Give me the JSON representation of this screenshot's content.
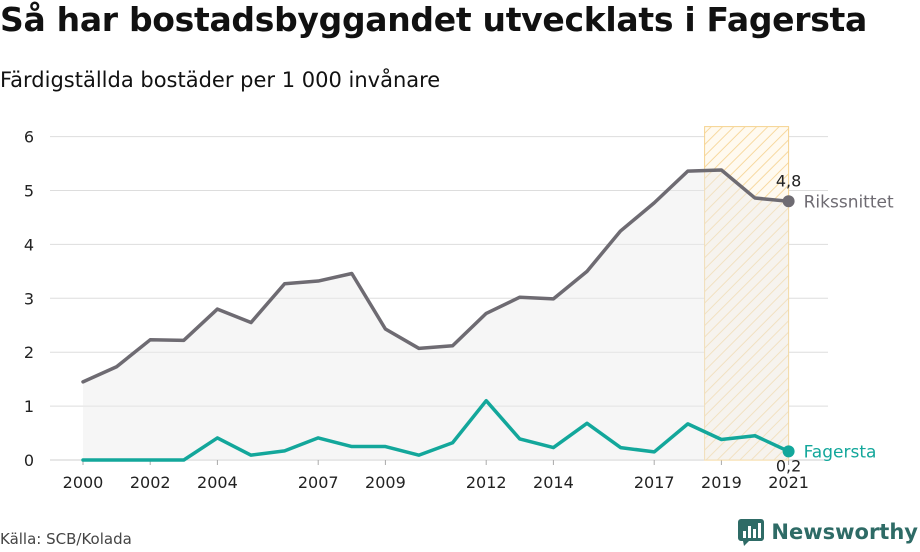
{
  "header": {
    "title": "Så har bostadsbyggandet utvecklats i Fagersta",
    "subtitle": "Färdigställda bostäder per 1 000 invånare"
  },
  "footer": {
    "source": "Källa: SCB/Kolada",
    "brand": "Newsworthy"
  },
  "chart_data": {
    "type": "line",
    "title": "Så har bostadsbyggandet utvecklats i Fagersta",
    "subtitle": "Färdigställda bostäder per 1 000 invånare",
    "x": [
      2000,
      2001,
      2002,
      2003,
      2004,
      2005,
      2006,
      2007,
      2008,
      2009,
      2010,
      2011,
      2012,
      2013,
      2014,
      2015,
      2016,
      2017,
      2018,
      2019,
      2020,
      2021
    ],
    "x_tick_labels": [
      "2000",
      "2002",
      "2004",
      "2007",
      "2009",
      "2012",
      "2014",
      "2017",
      "2019",
      "2021"
    ],
    "ylim": [
      0,
      6
    ],
    "y_ticks": [
      "0",
      "1",
      "2",
      "3",
      "4",
      "5",
      "6"
    ],
    "grid": true,
    "highlight_range": [
      2018.5,
      2021
    ],
    "series": [
      {
        "name": "Rikssnittet",
        "color": "#6e6b72",
        "end_label": "4,8",
        "values": [
          1.45,
          1.73,
          2.23,
          2.22,
          2.8,
          2.55,
          3.27,
          3.32,
          3.46,
          2.43,
          2.07,
          2.12,
          2.72,
          3.02,
          2.99,
          3.5,
          4.25,
          4.77,
          5.36,
          5.38,
          4.86,
          4.8
        ]
      },
      {
        "name": "Fagersta",
        "color": "#13a79b",
        "end_label": "0,2",
        "values": [
          0.0,
          0.0,
          0.0,
          0.0,
          0.41,
          0.09,
          0.17,
          0.41,
          0.25,
          0.25,
          0.09,
          0.32,
          1.1,
          0.39,
          0.23,
          0.68,
          0.23,
          0.15,
          0.67,
          0.38,
          0.45,
          0.16
        ]
      }
    ]
  }
}
